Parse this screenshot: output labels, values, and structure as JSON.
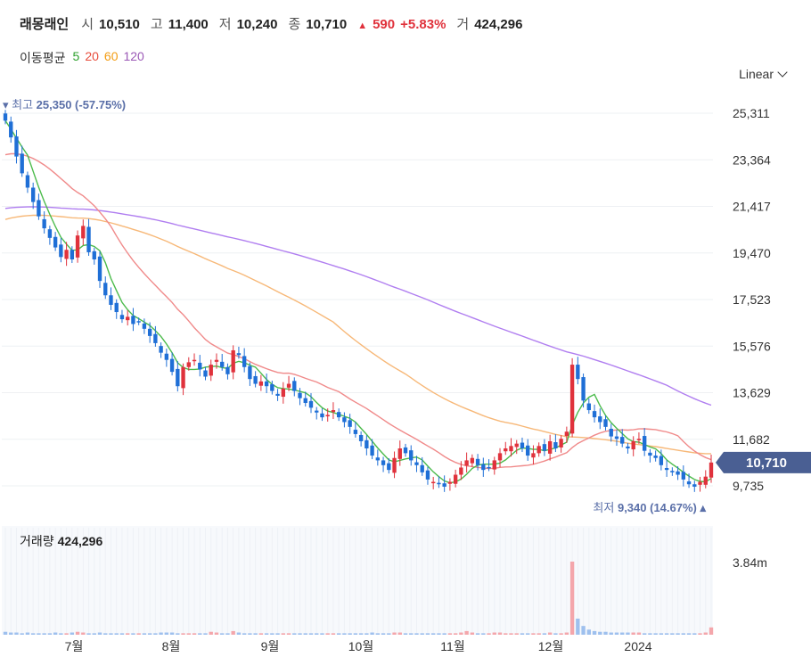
{
  "header": {
    "name": "래몽래인",
    "open_label": "시",
    "open": "10,510",
    "high_label": "고",
    "high": "11,400",
    "low_label": "저",
    "low": "10,240",
    "close_label": "종",
    "close": "10,710",
    "change_arrow": "▲",
    "change": "590",
    "change_pct": "+5.83%",
    "volume_label": "거",
    "volume": "424,296"
  },
  "moving_average": {
    "label": "이동평균",
    "periods": [
      {
        "value": "5",
        "color": "#2ca02c"
      },
      {
        "value": "20",
        "color": "#e74c3c"
      },
      {
        "value": "60",
        "color": "#f39c12"
      },
      {
        "value": "120",
        "color": "#9b59b6"
      }
    ]
  },
  "scale_selector": {
    "label": "Linear",
    "icon": "chevron-down-icon"
  },
  "chart_data": {
    "type": "candlestick",
    "y_ticks": [
      "25,311",
      "23,364",
      "21,417",
      "19,470",
      "17,523",
      "15,576",
      "13,629",
      "11,682",
      "9,735"
    ],
    "y_tick_values": [
      25311,
      23364,
      21417,
      19470,
      17523,
      15576,
      13629,
      11682,
      9735
    ],
    "x_ticks": [
      "7월",
      "8월",
      "9월",
      "10월",
      "11월",
      "12월",
      "2024"
    ],
    "current_price": "10,710",
    "current_price_value": 10710,
    "max_label": {
      "prefix": "최고",
      "value": "25,350",
      "pct": "(-57.75%)"
    },
    "min_label": {
      "prefix": "최저",
      "value": "9,340",
      "pct": "(14.67%)"
    },
    "up_color": "#e0323c",
    "down_color": "#1f6fd6",
    "close_series": [
      25000,
      24300,
      23500,
      22800,
      22200,
      21600,
      21000,
      20500,
      20100,
      19700,
      19300,
      19600,
      19200,
      20200,
      20600,
      19500,
      19200,
      18300,
      17700,
      17300,
      17000,
      16700,
      16800,
      16500,
      16600,
      16300,
      16000,
      15700,
      15300,
      15000,
      14500,
      13900,
      14700,
      14900,
      15000,
      14600,
      14300,
      14800,
      15000,
      14700,
      14400,
      15400,
      15200,
      14700,
      14200,
      14000,
      14100,
      13900,
      13700,
      13500,
      13800,
      14000,
      13700,
      13400,
      13200,
      13000,
      12800,
      12600,
      12700,
      12900,
      12600,
      12400,
      12200,
      11900,
      11600,
      11300,
      11000,
      10800,
      10600,
      10400,
      10900,
      11300,
      11100,
      10800,
      10600,
      10300,
      10000,
      9900,
      9800,
      9700,
      9900,
      10200,
      10500,
      10800,
      10900,
      10600,
      10400,
      10500,
      10800,
      11100,
      11300,
      11400,
      11500,
      11300,
      11000,
      11100,
      11400,
      11200,
      11600,
      11300,
      11700,
      12000,
      14800,
      14200,
      13300,
      12900,
      12600,
      12400,
      12200,
      11800,
      11700,
      11500,
      11300,
      11600,
      11700,
      11200,
      11000,
      10900,
      10600,
      10400,
      10300,
      10200,
      10000,
      9800,
      9700,
      9900,
      10120,
      10710
    ],
    "volume_series": [
      4,
      3,
      3,
      2,
      3,
      2,
      2,
      2,
      2,
      3,
      2,
      2,
      3,
      4,
      3,
      2,
      2,
      3,
      2,
      2,
      2,
      2,
      2,
      2,
      2,
      2,
      2,
      2,
      3,
      3,
      3,
      2,
      2,
      2,
      2,
      2,
      2,
      4,
      3,
      2,
      2,
      5,
      3,
      2,
      2,
      2,
      2,
      2,
      2,
      2,
      2,
      2,
      2,
      2,
      2,
      2,
      2,
      2,
      2,
      2,
      2,
      2,
      2,
      2,
      2,
      2,
      3,
      2,
      2,
      2,
      3,
      3,
      2,
      2,
      2,
      2,
      2,
      2,
      2,
      2,
      2,
      2,
      3,
      5,
      3,
      2,
      2,
      2,
      3,
      3,
      2,
      2,
      2,
      2,
      2,
      2,
      2,
      2,
      3,
      2,
      2,
      3,
      100,
      22,
      12,
      7,
      5,
      4,
      4,
      3,
      3,
      3,
      3,
      3,
      3,
      2,
      2,
      2,
      2,
      2,
      2,
      2,
      2,
      2,
      2,
      2,
      3,
      10
    ],
    "volume_axis_label": "3.84m",
    "volume_title": "거래량",
    "volume_value": "424,296"
  }
}
